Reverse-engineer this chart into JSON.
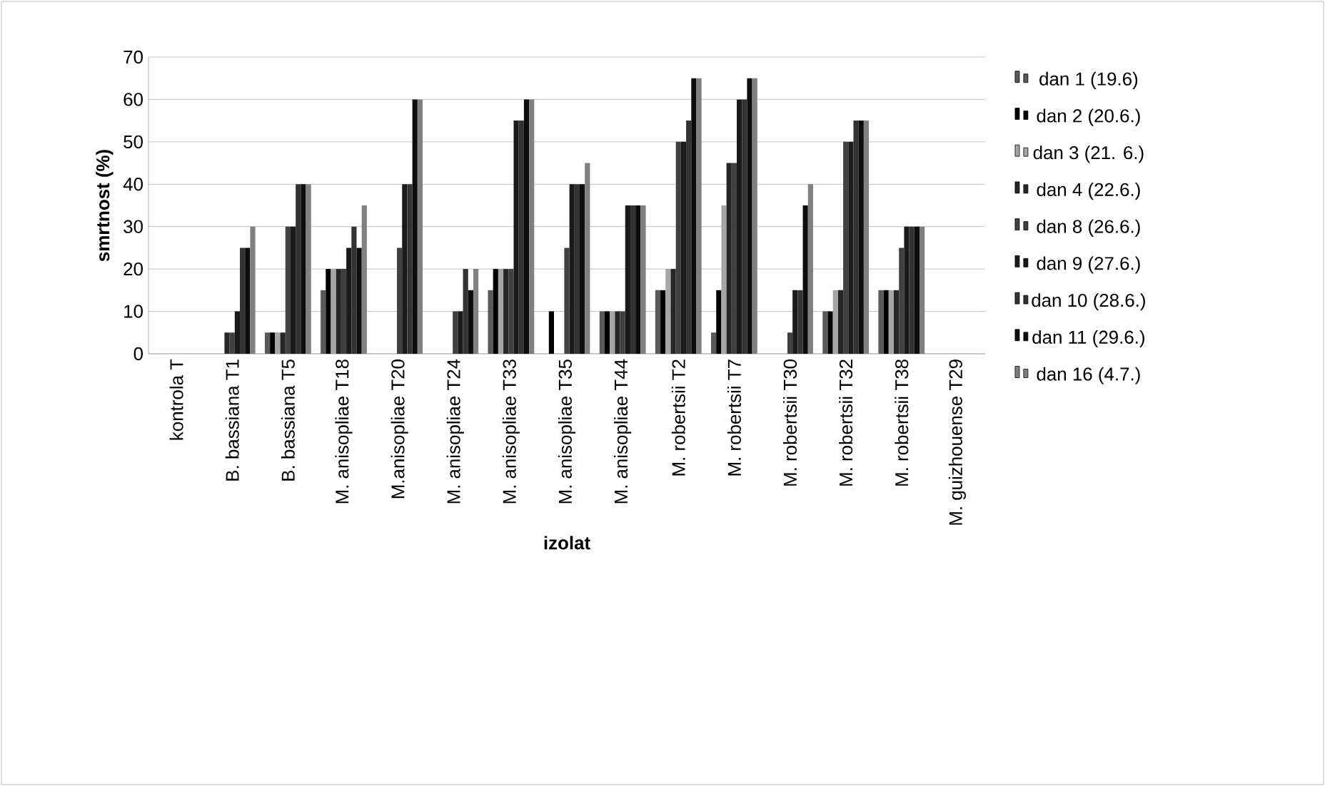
{
  "chart_data": {
    "type": "bar",
    "xlabel": "izolat",
    "ylabel": "**smrtnost (%)**",
    "categories": [
      "kontrola  T",
      "B. bassiana T1",
      "B. bassiana T5",
      "M. anisopliae T18",
      "M.anisopliae T20",
      "M. anisopliae T24",
      "M. anisopliae T33",
      "M. anisopliae T35",
      "M. anisopliae T44",
      "M. robertsii T2",
      "M. robertsii T7",
      "M. robertsii T30",
      "M. robertsii T32",
      "M. robertsii T38",
      "M. guizhouense T29"
    ],
    "series": [
      {
        "name": "dan 1 (19.6)",
        "color": "#595959",
        "values": [
          0,
          0,
          5,
          15,
          0,
          0,
          15,
          0,
          10,
          15,
          5,
          0,
          10,
          15,
          0
        ]
      },
      {
        "name": "dan 2 (20.6.)",
        "color": "#000000",
        "values": [
          0,
          0,
          5,
          20,
          0,
          0,
          20,
          10,
          10,
          15,
          15,
          0,
          10,
          15,
          0
        ]
      },
      {
        "name": "dan 3 (21. 6.)",
        "color": "#a6a6a6",
        "values": [
          0,
          0,
          5,
          20,
          0,
          0,
          20,
          0,
          10,
          20,
          35,
          0,
          15,
          15,
          0
        ]
      },
      {
        "name": "dan 4 (22.6.)",
        "color": "#262626",
        "values": [
          0,
          5,
          5,
          20,
          0,
          0,
          20,
          0,
          10,
          20,
          45,
          0,
          15,
          15,
          0
        ]
      },
      {
        "name": "dan 8 (26.6.)",
        "color": "#404040",
        "values": [
          0,
          5,
          30,
          20,
          25,
          10,
          20,
          25,
          10,
          50,
          45,
          5,
          50,
          25,
          0
        ]
      },
      {
        "name": "dan 9 (27.6.)",
        "color": "#1a1a1a",
        "values": [
          0,
          10,
          30,
          25,
          40,
          10,
          55,
          40,
          35,
          50,
          60,
          15,
          50,
          30,
          0
        ]
      },
      {
        "name": "dan 10 (28.6.)",
        "color": "#333333",
        "values": [
          0,
          25,
          40,
          30,
          40,
          20,
          55,
          40,
          35,
          55,
          60,
          15,
          55,
          30,
          0
        ]
      },
      {
        "name": "dan 11 (29.6.)",
        "color": "#0d0d0d",
        "values": [
          0,
          25,
          40,
          25,
          60,
          15,
          60,
          40,
          35,
          65,
          65,
          35,
          55,
          30,
          0
        ]
      },
      {
        "name": "dan 16 (4.7.)",
        "color": "#808080",
        "values": [
          0,
          30,
          40,
          35,
          60,
          20,
          60,
          45,
          35,
          65,
          65,
          40,
          55,
          30,
          0
        ]
      }
    ],
    "ylim": [
      0,
      70
    ],
    "yticks": [
      0,
      10,
      20,
      30,
      40,
      50,
      60,
      70
    ],
    "grid": "y",
    "legend": "right"
  }
}
